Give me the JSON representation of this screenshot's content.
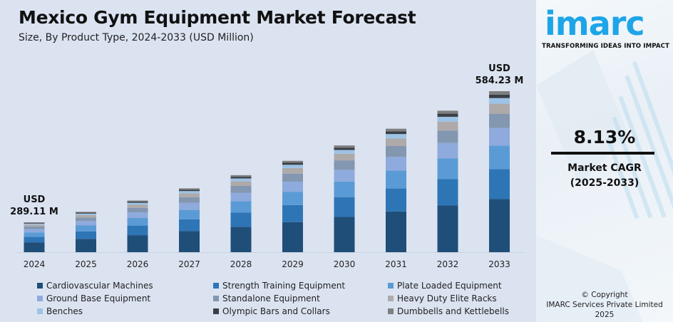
{
  "header": {
    "title": "Mexico Gym Equipment Market Forecast",
    "subtitle": "Size, By Product Type, 2024-2033 (USD Million)"
  },
  "brand": {
    "logo_text": "imarc",
    "tagline": "TRANSFORMING IDEAS INTO IMPACT",
    "logo_color": "#1ea5e8"
  },
  "cagr": {
    "value": "8.13%",
    "label_line1": "Market CAGR",
    "label_line2": "(2025-2033)"
  },
  "copyright": {
    "line1": "© Copyright",
    "line2": "IMARC Services Private Limited 2025"
  },
  "chart_data": {
    "type": "bar",
    "stacked": true,
    "title": "Mexico Gym Equipment Market Forecast",
    "subtitle": "Size, By Product Type, 2024-2033 (USD Million)",
    "xlabel": "",
    "ylabel": "",
    "grid": false,
    "legend_position": "bottom",
    "categories": [
      "2024",
      "2025",
      "2026",
      "2027",
      "2028",
      "2029",
      "2030",
      "2031",
      "2032",
      "2033"
    ],
    "totals": [
      289.11,
      312.6,
      338.0,
      365.5,
      395.2,
      427.4,
      462.1,
      499.7,
      540.3,
      584.23
    ],
    "annotations": [
      {
        "category": "2024",
        "line1": "USD",
        "line2": "289.11 M"
      },
      {
        "category": "2033",
        "line1": "USD",
        "line2": "584.23 M"
      }
    ],
    "series": [
      {
        "name": "Cardiovascular Machines",
        "color": "#1f4e79",
        "values": [
          95.4,
          103.2,
          111.5,
          120.6,
          130.4,
          141.0,
          152.5,
          164.9,
          178.3,
          192.8
        ]
      },
      {
        "name": "Strength Training Equipment",
        "color": "#2e75b6",
        "values": [
          53.8,
          58.1,
          62.9,
          68.0,
          73.5,
          79.5,
          86.0,
          92.9,
          100.5,
          108.7
        ]
      },
      {
        "name": "Plate Loaded Equipment",
        "color": "#5b9bd5",
        "values": [
          42.2,
          45.6,
          49.3,
          53.4,
          57.7,
          62.4,
          67.5,
          72.9,
          78.9,
          85.3
        ]
      },
      {
        "name": "Ground Base Equipment",
        "color": "#8faadc",
        "values": [
          31.8,
          34.4,
          37.2,
          40.2,
          43.5,
          47.0,
          50.8,
          55.0,
          59.4,
          64.3
        ]
      },
      {
        "name": "Standalone Equipment",
        "color": "#8497b0",
        "values": [
          25.4,
          27.5,
          29.7,
          32.2,
          34.8,
          37.6,
          40.7,
          44.0,
          47.5,
          51.4
        ]
      },
      {
        "name": "Heavy Duty Elite Racks",
        "color": "#aeaaaa",
        "values": [
          17.9,
          19.4,
          21.0,
          22.7,
          24.5,
          26.5,
          28.7,
          31.0,
          33.5,
          36.2
        ]
      },
      {
        "name": "Benches",
        "color": "#9dc3e6",
        "values": [
          10.1,
          10.9,
          11.8,
          12.8,
          13.8,
          15.0,
          16.2,
          17.5,
          18.9,
          20.4
        ]
      },
      {
        "name": "Olympic Bars and Collars",
        "color": "#3b3f45",
        "values": [
          6.4,
          6.9,
          7.4,
          8.0,
          8.7,
          9.4,
          10.2,
          11.0,
          11.9,
          12.9
        ]
      },
      {
        "name": "Dumbbells and Kettlebells",
        "color": "#7f7f7f",
        "values": [
          6.1,
          6.6,
          7.2,
          7.6,
          8.3,
          9.0,
          9.5,
          10.5,
          11.4,
          12.23
        ]
      }
    ]
  }
}
